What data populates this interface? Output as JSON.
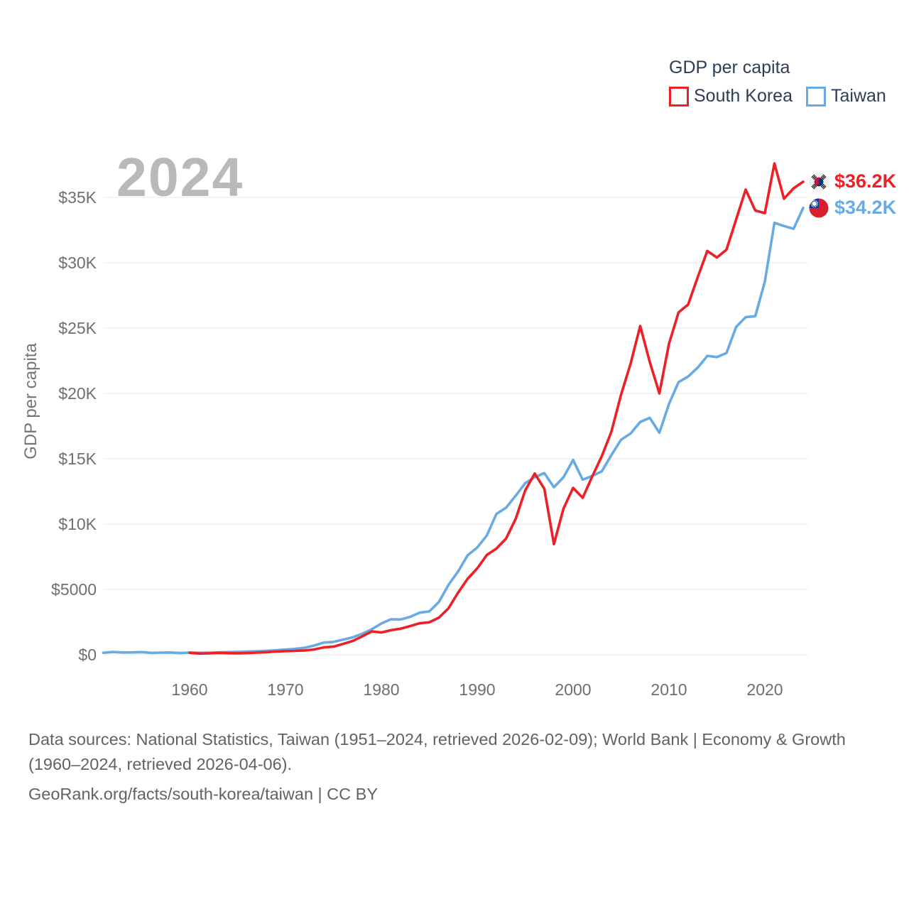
{
  "legend": {
    "title": "GDP per capita",
    "items": [
      {
        "label": "South Korea",
        "color": "#ee1f25"
      },
      {
        "label": "Taiwan",
        "color": "#68aae3"
      }
    ]
  },
  "watermark_year": "2024",
  "y_axis": {
    "title": "GDP per capita",
    "ticks": [
      "$0",
      "$5000",
      "$10K",
      "$15K",
      "$20K",
      "$25K",
      "$30K",
      "$35K"
    ]
  },
  "x_axis": {
    "ticks": [
      "1960",
      "1970",
      "1980",
      "1990",
      "2000",
      "2010",
      "2020"
    ]
  },
  "footer": {
    "sources": "Data sources: National Statistics, Taiwan (1951–2024, retrieved 2026-02-09); World Bank | Economy & Growth (1960–2024, retrieved 2026-04-06).",
    "attribution": "GeoRank.org/facts/south-korea/taiwan | CC BY"
  },
  "chart_data": {
    "type": "line",
    "title": "GDP per capita",
    "ylabel": "GDP per capita",
    "ylim": [
      0,
      38000
    ],
    "grid": true,
    "legend_position": "top-right",
    "y_axis_values": [
      0,
      5000,
      10000,
      15000,
      20000,
      25000,
      30000,
      35000
    ],
    "x_axis_values": [
      1960,
      1970,
      1980,
      1990,
      2000,
      2010,
      2020
    ],
    "series": [
      {
        "name": "South Korea",
        "color": "#ee1f25",
        "flag": "south-korea",
        "start_year": 1960,
        "end_year": 2024,
        "end_label": "$36.2K",
        "values": [
          158,
          94,
          106,
          146,
          124,
          109,
          133,
          161,
          198,
          243,
          279,
          301,
          324,
          406,
          563,
          617,
          834,
          1056,
          1406,
          1784,
          1704,
          1883,
          1992,
          2198,
          2413,
          2482,
          2835,
          3555,
          4749,
          5817,
          6610,
          7637,
          8127,
          8885,
          10385,
          12565,
          13870,
          12700,
          8470,
          11190,
          12770,
          12010,
          13650,
          15210,
          17080,
          19900,
          22290,
          25160,
          22400,
          20000,
          23800,
          26200,
          26800,
          28900,
          30900,
          30400,
          31000,
          33300,
          35600,
          34000,
          33800,
          37600,
          34900,
          35700,
          36200
        ]
      },
      {
        "name": "Taiwan",
        "color": "#68aae3",
        "flag": "taiwan",
        "start_year": 1951,
        "end_year": 2024,
        "end_label": "$34.2K",
        "values": [
          154,
          213,
          176,
          182,
          203,
          146,
          161,
          173,
          132,
          163,
          154,
          162,
          180,
          202,
          217,
          237,
          267,
          304,
          345,
          397,
          451,
          530,
          706,
          934,
          985,
          1158,
          1330,
          1606,
          1950,
          2389,
          2720,
          2699,
          2903,
          3224,
          3314,
          4036,
          5350,
          6370,
          7613,
          8205,
          9125,
          10778,
          11251,
          12160,
          13129,
          13587,
          13904,
          12820,
          13585,
          14908,
          13397,
          13686,
          14041,
          15290,
          16456,
          16934,
          17814,
          18131,
          16988,
          19197,
          20866,
          21295,
          21973,
          22874,
          22780,
          23091,
          25080,
          25838,
          25908,
          28549,
          33059,
          32811,
          32604,
          34200
        ]
      }
    ]
  }
}
